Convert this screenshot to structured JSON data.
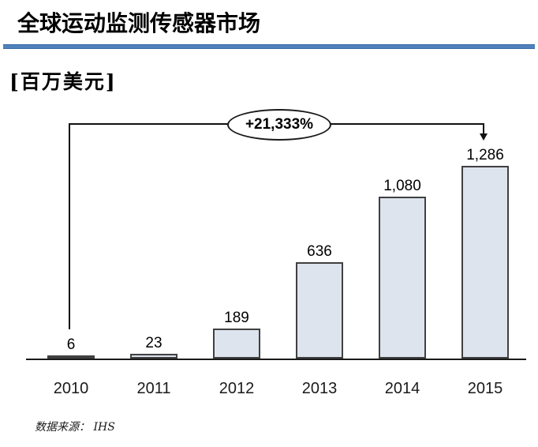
{
  "page": {
    "title": "全球运动监测传感器市场",
    "unit_label": "[百万美元]",
    "source": "数据来源：  IHS"
  },
  "colors": {
    "accent_rule": "#4f81bd",
    "bar_fill": "#dde4ee",
    "bar_border": "#404040",
    "axis": "#1a1a1a"
  },
  "chart_data": {
    "type": "bar",
    "categories": [
      "2010",
      "2011",
      "2012",
      "2013",
      "2014",
      "2015"
    ],
    "values": [
      6,
      23,
      189,
      636,
      1080,
      1286
    ],
    "value_labels": [
      "6",
      "23",
      "189",
      "636",
      "1,080",
      "1,286"
    ],
    "title": "全球运动监测传感器市场",
    "xlabel": "",
    "ylabel": "百万美元",
    "ylim": [
      0,
      1350
    ],
    "grid": false,
    "legend": false,
    "annotation": "+21,333%",
    "annotation_span": [
      "2010",
      "2015"
    ],
    "source": "数据来源：IHS",
    "bar_fill": "#dde4ee",
    "bar_border": "#404040"
  }
}
